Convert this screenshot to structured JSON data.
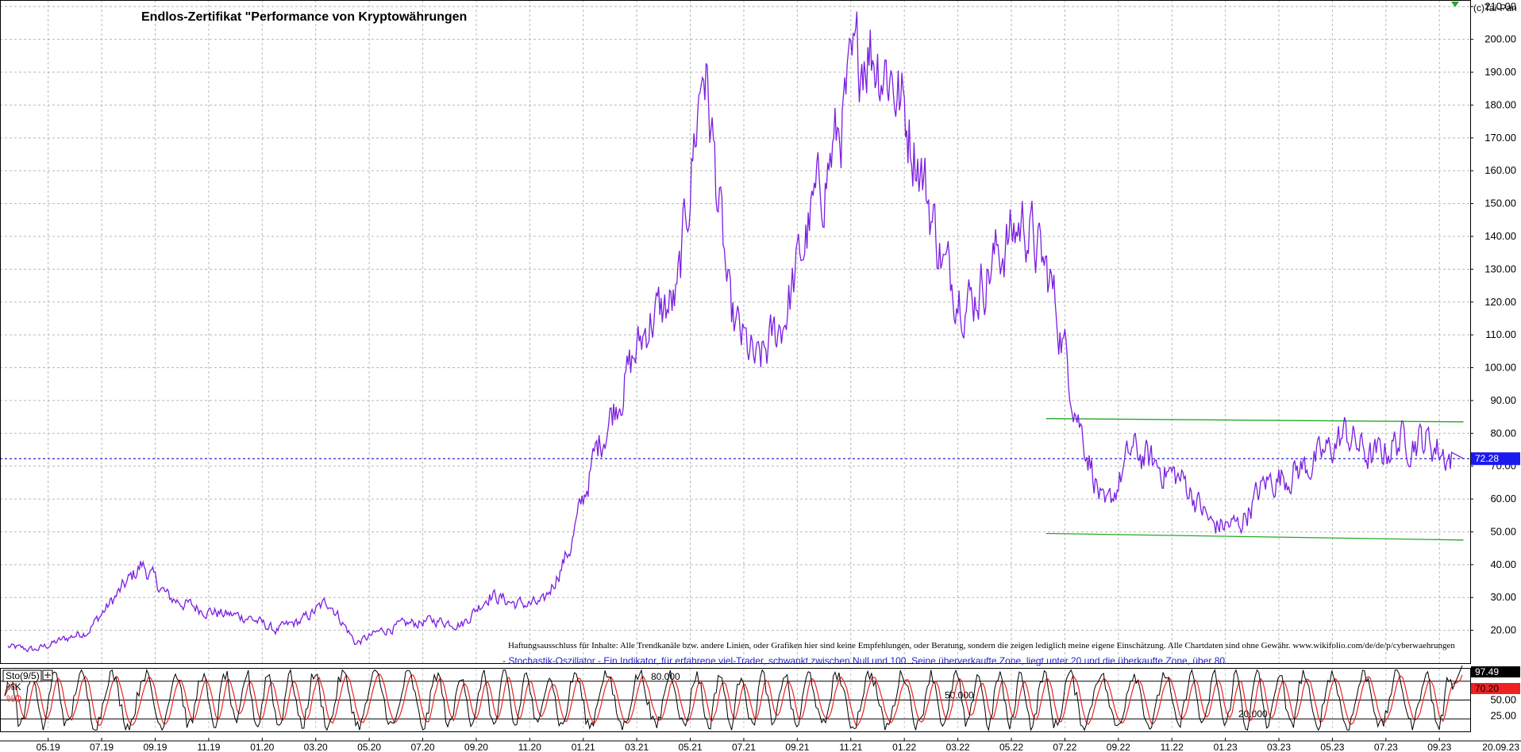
{
  "copyright": "(c)Tai-Pan",
  "chart_data": [
    {
      "type": "line",
      "title": "Endlos-Zertifikat \"Performance von Kryptowährungen",
      "xlabel": "",
      "ylabel": "",
      "ylim": [
        10,
        212
      ],
      "y_ticks": [
        20,
        30,
        40,
        50,
        60,
        70,
        80,
        90,
        100,
        110,
        120,
        130,
        140,
        150,
        160,
        170,
        180,
        190,
        200,
        210
      ],
      "y_tick_labels": [
        "20.00",
        "30.00",
        "40.00",
        "50.00",
        "60.00",
        "70.00",
        "80.00",
        "90.00",
        "100.00",
        "110.00",
        "120.00",
        "130.00",
        "140.00",
        "150.00",
        "160.00",
        "170.00",
        "180.00",
        "190.00",
        "200.00",
        "210.00"
      ],
      "x_ticks": [
        "05.19",
        "07.19",
        "09.19",
        "11.19",
        "01.20",
        "03.20",
        "05.20",
        "07.20",
        "09.20",
        "11.20",
        "01.21",
        "03.21",
        "05.21",
        "07.21",
        "09.21",
        "11.21",
        "01.22",
        "03.22",
        "05.22",
        "07.22",
        "09.22",
        "11.22",
        "01.23",
        "03.23",
        "05.23",
        "07.23",
        "09.23"
      ],
      "x_range": [
        "2019-03",
        "2023-10"
      ],
      "last_date_label": "20.09.23",
      "grid": true,
      "series": [
        {
          "name": "",
          "color": "#7a1fe0",
          "x": [
            "2019-03",
            "2019-04",
            "2019-05",
            "2019-06",
            "2019-07",
            "2019-08",
            "2019-09",
            "2019-10",
            "2019-11",
            "2019-12",
            "2020-01",
            "2020-02",
            "2020-03",
            "2020-04",
            "2020-05",
            "2020-06",
            "2020-07",
            "2020-08",
            "2020-09",
            "2020-10",
            "2020-11",
            "2020-12",
            "2021-01",
            "2021-02",
            "2021-03",
            "2021-04",
            "2021-05",
            "2021-06",
            "2021-07",
            "2021-08",
            "2021-09",
            "2021-10",
            "2021-11",
            "2021-12",
            "2022-01",
            "2022-02",
            "2022-03",
            "2022-04",
            "2022-05",
            "2022-06",
            "2022-07",
            "2022-08",
            "2022-09",
            "2022-10",
            "2022-11",
            "2022-12",
            "2023-01",
            "2023-02",
            "2023-03",
            "2023-04",
            "2023-05",
            "2023-06",
            "2023-07",
            "2023-08",
            "2023-09"
          ],
          "values": [
            15,
            14,
            17,
            20,
            30,
            40,
            30,
            27,
            25,
            24,
            20,
            23,
            29,
            16,
            20,
            22,
            23,
            22,
            31,
            28,
            28,
            45,
            75,
            95,
            115,
            120,
            195,
            115,
            100,
            115,
            145,
            170,
            200,
            190,
            165,
            130,
            120,
            135,
            145,
            125,
            85,
            55,
            75,
            70,
            65,
            52,
            52,
            65,
            68,
            72,
            80,
            72,
            78,
            78,
            72
          ]
        }
      ],
      "trend_lines": [
        {
          "name": "",
          "color": "#22aa22",
          "from": [
            "2022-06",
            84.5
          ],
          "to": [
            "2023-10",
            83.5
          ]
        },
        {
          "name": "",
          "color": "#22aa22",
          "from": [
            "2022-06",
            49.5
          ],
          "to": [
            "2023-10",
            47.5
          ]
        }
      ],
      "last_value_line": 72.28,
      "last_value_label": "72.28",
      "disclaimer": "Haftungsausschluss für Inhalte: Alle Trendkanäle bzw. andere Linien, oder Grafiken hier sind keine Empfehlungen, oder Beratung, sondern die zeigen lediglich meine eigene Einschätzung. Alle Chartdaten sind ohne Gewähr. www.wikifolio.com/de/de/p/cyberwaehrungen"
    },
    {
      "type": "line",
      "title": "Sto(9/5)",
      "caption": "- Stochastik-Oszillator - Ein Indikator, für erfahrene viel-Trader, schwankt zwischen Null und 100. Seine überverkaufte Zone, liegt unter 20 und die überkaufte Zone, über 80.",
      "ylim": [
        0,
        100
      ],
      "y_tick_labels": [
        "25.00",
        "50.00"
      ],
      "levels": [
        {
          "value": 80,
          "label": "80.000"
        },
        {
          "value": 50,
          "label": "50.000"
        },
        {
          "value": 20,
          "label": "20.000"
        }
      ],
      "series": [
        {
          "name": "%K",
          "color": "#000000",
          "last_value_label": "97.49"
        },
        {
          "name": "%D",
          "color": "#ee2222",
          "last_value_label": "70.20"
        }
      ]
    }
  ]
}
